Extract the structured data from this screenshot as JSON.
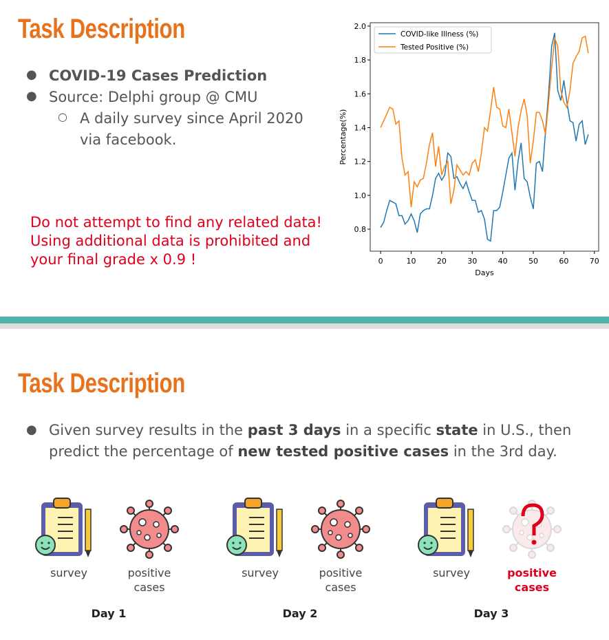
{
  "slides": [
    {
      "title": "Task Description",
      "bullets": [
        "COVID-19 Cases Prediction",
        "Source: Delphi group @ CMU"
      ],
      "sub_bullets": [
        "A daily survey since April 2020 via facebook."
      ],
      "warning": [
        "Do not attempt to find any related data!",
        "Using additional data is prohibited and",
        "your final grade x 0.9 !"
      ]
    },
    {
      "title": "Task Description",
      "bullet": [
        {
          "text": "Given survey results in the"
        },
        {
          "text": "past 3 days",
          "bold": true
        },
        {
          "text": "in a specific"
        },
        {
          "text": "state",
          "bold": true
        },
        {
          "text": "in U.S., then predict the percentage of"
        },
        {
          "text": "new tested positive cases",
          "bold": true
        },
        {
          "text": "in the 3rd day."
        }
      ],
      "days": [
        {
          "label": "Day 1",
          "items": [
            "survey",
            "positive cases"
          ]
        },
        {
          "label": "Day 2",
          "items": [
            "survey",
            "positive cases"
          ]
        },
        {
          "label": "Day 3",
          "items": [
            "survey",
            "positive cases"
          ],
          "color": "#e0001b"
        }
      ]
    }
  ],
  "chart_data": {
    "type": "line",
    "xlabel": "Days",
    "ylabel": "Percentage(%)",
    "x": [
      0,
      1,
      2,
      3,
      4,
      5,
      6,
      7,
      8,
      9,
      10,
      11,
      12,
      13,
      14,
      15,
      16,
      17,
      18,
      19,
      20,
      21,
      22,
      23,
      24,
      25,
      26,
      27,
      28,
      29,
      30,
      31,
      32,
      33,
      34,
      35,
      36,
      37,
      38,
      39,
      40,
      41,
      42,
      43,
      44,
      45,
      46,
      47,
      48,
      49,
      50,
      51,
      52,
      53,
      54,
      55,
      56,
      57,
      58,
      59,
      60,
      61,
      62,
      63,
      64,
      65,
      66,
      67,
      68
    ],
    "series": [
      {
        "name": "COVID-like Illness (%)",
        "color": "#1f77b4",
        "values": [
          0.81,
          0.84,
          0.91,
          0.97,
          0.96,
          0.95,
          0.88,
          0.88,
          0.83,
          0.85,
          0.89,
          0.85,
          0.78,
          0.89,
          0.91,
          0.92,
          0.92,
          1.0,
          1.1,
          1.13,
          1.09,
          1.12,
          1.25,
          1.23,
          1.1,
          1.11,
          1.07,
          1.04,
          1.08,
          1.02,
          0.97,
          0.97,
          0.9,
          0.91,
          0.86,
          0.74,
          0.73,
          0.91,
          0.91,
          0.93,
          1.02,
          1.12,
          1.22,
          1.25,
          1.03,
          1.2,
          1.31,
          1.1,
          1.08,
          0.99,
          0.92,
          1.19,
          1.2,
          1.14,
          1.38,
          1.6,
          1.88,
          1.96,
          1.62,
          1.56,
          1.68,
          1.55,
          1.44,
          1.43,
          1.32,
          1.42,
          1.44,
          1.3,
          1.36
        ]
      },
      {
        "name": "Tested Positive (%)",
        "color": "#ff7f0e",
        "values": [
          1.4,
          1.44,
          1.48,
          1.52,
          1.51,
          1.42,
          1.44,
          1.22,
          1.12,
          1.14,
          0.93,
          1.08,
          1.05,
          1.09,
          1.1,
          1.19,
          1.3,
          1.37,
          1.17,
          1.29,
          1.12,
          1.17,
          1.2,
          0.95,
          1.03,
          1.18,
          1.15,
          1.12,
          1.14,
          1.12,
          1.19,
          1.21,
          1.14,
          1.25,
          1.4,
          1.38,
          1.5,
          1.64,
          1.52,
          1.51,
          1.41,
          1.4,
          1.51,
          1.37,
          1.23,
          1.4,
          1.5,
          1.57,
          1.47,
          1.19,
          1.32,
          1.49,
          1.49,
          1.44,
          1.36,
          1.55,
          1.75,
          1.93,
          1.88,
          1.62,
          1.55,
          1.52,
          1.62,
          1.78,
          1.82,
          1.85,
          1.93,
          1.94,
          1.84
        ]
      }
    ],
    "xlim": [
      -3.4,
      71.4
    ],
    "ylim": [
      0.67,
      2.02
    ],
    "xticks": [
      0,
      10,
      20,
      30,
      40,
      50,
      60,
      70
    ],
    "yticks": [
      0.8,
      {
        "value": 1.0,
        "label": "1.0"
      },
      1.2,
      1.4,
      1.6,
      1.8,
      {
        "value": 2.0,
        "label": "2.0"
      }
    ],
    "legend": "upper left"
  }
}
